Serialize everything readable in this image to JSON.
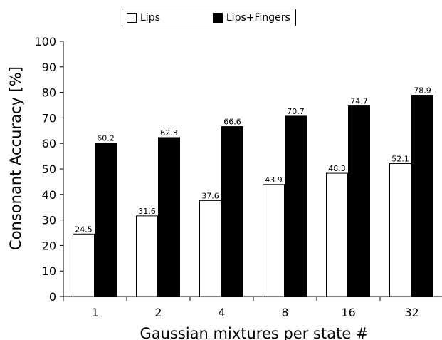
{
  "chart_data": {
    "type": "bar",
    "categories": [
      "1",
      "2",
      "4",
      "8",
      "16",
      "32"
    ],
    "series": [
      {
        "name": "Lips",
        "values": [
          24.5,
          31.6,
          37.6,
          43.9,
          48.3,
          52.1
        ],
        "color": "#ffffff"
      },
      {
        "name": "Lips+Fingers",
        "values": [
          60.2,
          62.3,
          66.6,
          70.7,
          74.7,
          78.9
        ],
        "color": "#000000"
      }
    ],
    "xlabel": "Gaussian mixtures per state #",
    "ylabel": "Consonant Accuracy [%]",
    "ylim": [
      0,
      100
    ],
    "yticks": [
      0,
      10,
      20,
      30,
      40,
      50,
      60,
      70,
      80,
      90,
      100
    ],
    "grid": false,
    "legend_position": "top"
  }
}
